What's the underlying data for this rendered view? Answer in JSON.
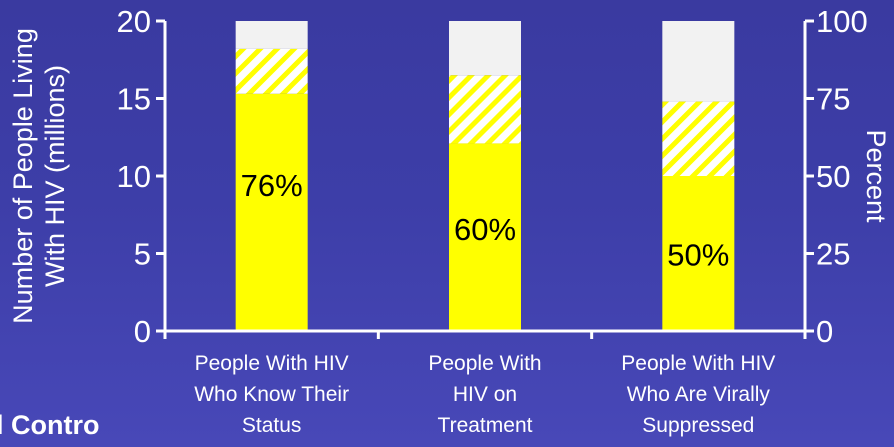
{
  "chart_data": {
    "type": "bar",
    "categories": [
      [
        "People With HIV",
        "Who Know Their",
        "Status"
      ],
      [
        "People With",
        "HIV on",
        "Treatment"
      ],
      [
        "People With HIV",
        "Who Are Virally",
        "Suppressed"
      ]
    ],
    "series": [
      {
        "values": [
          15.3,
          12.1,
          10.0
        ]
      },
      {
        "values": [
          18.2,
          16.5,
          14.8
        ]
      }
    ],
    "totals": [
      20,
      20,
      20
    ],
    "data_labels": [
      "76%",
      "60%",
      "50%"
    ],
    "ylabel": [
      "Number of People Living",
      "With HIV (millions)"
    ],
    "ylabel_right": "Percent",
    "ylim": [
      0,
      20
    ],
    "ylim_right": [
      0,
      100
    ],
    "yticks": [
      "0",
      "5",
      "10",
      "15",
      "20"
    ],
    "yticks_right": [
      "0",
      "25",
      "50",
      "75",
      "100"
    ],
    "colors": {
      "value": "#ffff00",
      "range": "#ffff00",
      "total": "#f2f2f2",
      "axis": "#ffffff",
      "label": "#000000"
    }
  },
  "footer": {
    "text": "l Contro"
  }
}
